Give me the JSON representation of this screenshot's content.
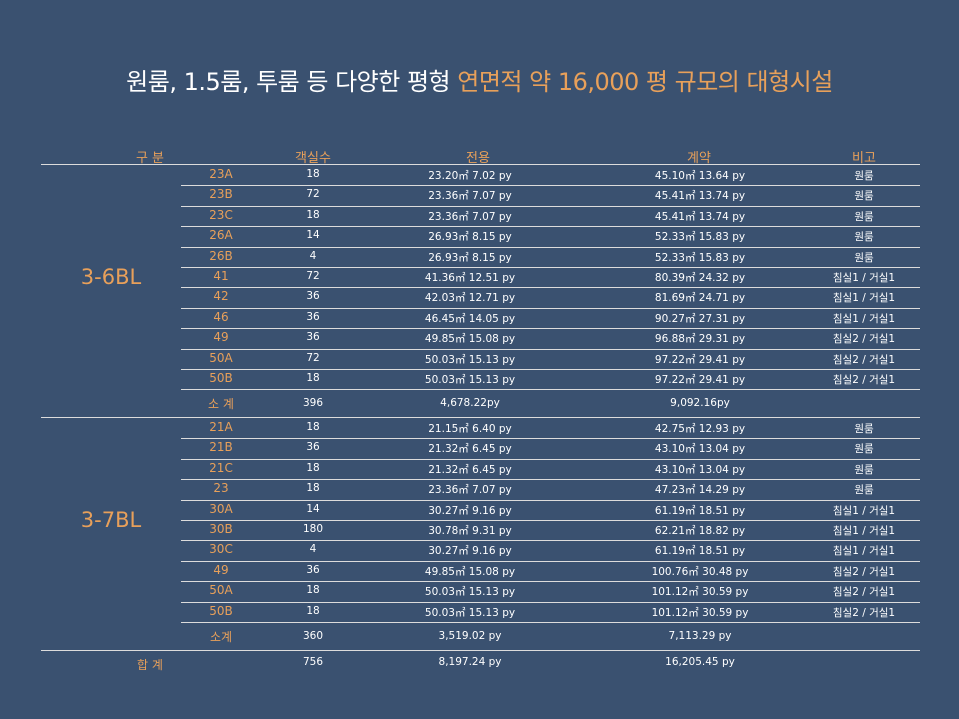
{
  "title": {
    "main": "원룸, 1.5룸, 투룸 등 다양한 평형",
    "highlight": "연면적 약 16,000 평 규모의 대형시설"
  },
  "headers": {
    "division": "구 분",
    "rooms": "객실수",
    "exclusive": "전용",
    "contract": "계약",
    "remarks": "비고"
  },
  "groups": [
    {
      "label": "3-6BL",
      "rows": [
        {
          "type": "23A",
          "count": "18",
          "exclusive": "23.20㎡ 7.02 py",
          "contract": "45.10㎡ 13.64 py",
          "remark": "원룸"
        },
        {
          "type": "23B",
          "count": "72",
          "exclusive": "23.36㎡ 7.07 py",
          "contract": "45.41㎡ 13.74 py",
          "remark": "원룸"
        },
        {
          "type": "23C",
          "count": "18",
          "exclusive": "23.36㎡ 7.07 py",
          "contract": "45.41㎡ 13.74 py",
          "remark": "원룸"
        },
        {
          "type": "26A",
          "count": "14",
          "exclusive": "26.93㎡ 8.15 py",
          "contract": "52.33㎡ 15.83 py",
          "remark": "원룸"
        },
        {
          "type": "26B",
          "count": "4",
          "exclusive": "26.93㎡ 8.15 py",
          "contract": "52.33㎡ 15.83 py",
          "remark": "원룸"
        },
        {
          "type": "41",
          "count": "72",
          "exclusive": "41.36㎡ 12.51 py",
          "contract": "80.39㎡ 24.32 py",
          "remark": "침실1 / 거실1"
        },
        {
          "type": "42",
          "count": "36",
          "exclusive": "42.03㎡ 12.71 py",
          "contract": "81.69㎡ 24.71 py",
          "remark": "침실1 / 거실1"
        },
        {
          "type": "46",
          "count": "36",
          "exclusive": "46.45㎡ 14.05 py",
          "contract": "90.27㎡ 27.31 py",
          "remark": "침실1 / 거실1"
        },
        {
          "type": "49",
          "count": "36",
          "exclusive": "49.85㎡ 15.08 py",
          "contract": "96.88㎡ 29.31 py",
          "remark": "침실2 / 거실1"
        },
        {
          "type": "50A",
          "count": "72",
          "exclusive": "50.03㎡ 15.13 py",
          "contract": "97.22㎡ 29.41 py",
          "remark": "침실2 / 거실1"
        },
        {
          "type": "50B",
          "count": "18",
          "exclusive": "50.03㎡ 15.13 py",
          "contract": "97.22㎡ 29.41 py",
          "remark": "침실2 / 거실1"
        }
      ],
      "subtotal": {
        "label": "소 계",
        "count": "396",
        "exclusive": "4,678.22py",
        "contract": "9,092.16py"
      }
    },
    {
      "label": "3-7BL",
      "rows": [
        {
          "type": "21A",
          "count": "18",
          "exclusive": "21.15㎡ 6.40 py",
          "contract": "42.75㎡ 12.93 py",
          "remark": "원룸"
        },
        {
          "type": "21B",
          "count": "36",
          "exclusive": "21.32㎡ 6.45 py",
          "contract": "43.10㎡ 13.04 py",
          "remark": "원룸"
        },
        {
          "type": "21C",
          "count": "18",
          "exclusive": "21.32㎡ 6.45 py",
          "contract": "43.10㎡ 13.04 py",
          "remark": "원룸"
        },
        {
          "type": "23",
          "count": "18",
          "exclusive": "23.36㎡ 7.07 py",
          "contract": "47.23㎡ 14.29 py",
          "remark": "원룸"
        },
        {
          "type": "30A",
          "count": "14",
          "exclusive": "30.27㎡ 9.16 py",
          "contract": "61.19㎡ 18.51 py",
          "remark": "침실1 / 거실1"
        },
        {
          "type": "30B",
          "count": "180",
          "exclusive": "30.78㎡ 9.31 py",
          "contract": "62.21㎡ 18.82 py",
          "remark": "침실1 / 거실1"
        },
        {
          "type": "30C",
          "count": "4",
          "exclusive": "30.27㎡ 9.16 py",
          "contract": "61.19㎡ 18.51 py",
          "remark": "침실1 / 거실1"
        },
        {
          "type": "49",
          "count": "36",
          "exclusive": "49.85㎡ 15.08 py",
          "contract": "100.76㎡ 30.48 py",
          "remark": "침실2 / 거실1"
        },
        {
          "type": "50A",
          "count": "18",
          "exclusive": "50.03㎡ 15.13 py",
          "contract": "101.12㎡ 30.59 py",
          "remark": "침실2 / 거실1"
        },
        {
          "type": "50B",
          "count": "18",
          "exclusive": "50.03㎡ 15.13 py",
          "contract": "101.12㎡ 30.59 py",
          "remark": "침실2 / 거실1"
        }
      ],
      "subtotal": {
        "label": "소계",
        "count": "360",
        "exclusive": "3,519.02 py",
        "contract": "7,113.29 py"
      }
    }
  ],
  "total": {
    "label": "합 계",
    "count": "756",
    "exclusive": "8,197.24 py",
    "contract": "16,205.45 py"
  }
}
